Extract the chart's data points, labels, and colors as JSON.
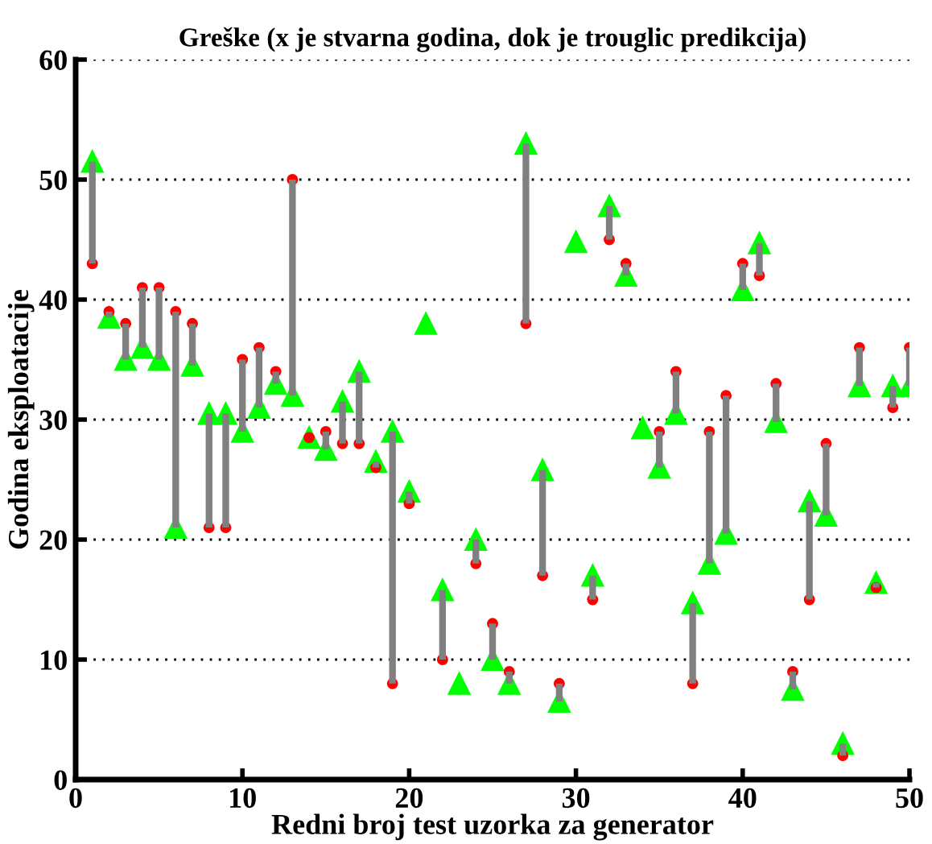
{
  "chart_data": {
    "type": "scatter",
    "title": "Greške (x je stvarna godina, dok je trouglic predikcija)",
    "xlabel": "Redni broj test uzorka za generator",
    "ylabel": "Godina eksploatacije",
    "x": [
      1,
      2,
      3,
      4,
      5,
      6,
      7,
      8,
      9,
      10,
      11,
      12,
      13,
      14,
      15,
      16,
      17,
      18,
      19,
      20,
      21,
      22,
      23,
      24,
      25,
      26,
      27,
      28,
      29,
      30,
      31,
      32,
      33,
      34,
      35,
      36,
      37,
      38,
      39,
      40,
      41,
      42,
      43,
      44,
      45,
      46,
      47,
      48,
      49,
      50
    ],
    "series": [
      {
        "color": "#ff0000",
        "marker": "circle",
        "values": [
          43,
          39,
          38,
          41,
          41,
          39,
          38,
          21,
          21,
          35,
          36,
          34,
          50,
          28.5,
          29,
          28,
          28,
          26,
          8,
          23,
          null,
          10,
          null,
          18,
          13,
          9,
          38,
          17,
          8,
          null,
          15,
          45,
          43,
          null,
          29,
          34,
          8,
          29,
          32,
          43,
          42,
          33,
          9,
          15,
          28,
          2,
          36,
          16,
          31,
          36
        ]
      },
      {
        "color": "#00ff00",
        "marker": "triangle",
        "values": [
          51.5,
          38.5,
          35,
          36,
          35,
          21,
          34.5,
          30.5,
          30.5,
          29,
          31,
          33,
          32,
          28.5,
          27.5,
          31.5,
          34,
          26.5,
          29,
          24,
          38,
          15.8,
          8,
          20,
          10,
          8,
          53,
          25.8,
          6.5,
          44.8,
          17,
          47.8,
          42,
          29.3,
          26,
          30.5,
          14.7,
          18,
          20.5,
          40.8,
          44.7,
          29.8,
          7.5,
          23.2,
          22,
          3,
          32.8,
          16.4,
          32.8,
          32.8
        ],
        "errors": [
          [
            43,
            51.5
          ],
          [
            38.5,
            39
          ],
          [
            35,
            38
          ],
          [
            36,
            41
          ],
          [
            35,
            41
          ],
          [
            21,
            39
          ],
          [
            34.5,
            38
          ],
          [
            21,
            30.5
          ],
          [
            21,
            30.5
          ],
          [
            29,
            35
          ],
          [
            31,
            36
          ],
          [
            33,
            34
          ],
          [
            32,
            50
          ],
          null,
          [
            27.5,
            29
          ],
          [
            28,
            31.5
          ],
          [
            28,
            34
          ],
          [
            26,
            26.5
          ],
          [
            8,
            29
          ],
          [
            23,
            24
          ],
          null,
          [
            10,
            15.8
          ],
          null,
          [
            18,
            20
          ],
          [
            10,
            13
          ],
          [
            8,
            9
          ],
          [
            38,
            53
          ],
          [
            17,
            25.8
          ],
          [
            6.5,
            8
          ],
          null,
          [
            15,
            17
          ],
          [
            45,
            47.8
          ],
          [
            42,
            43
          ],
          null,
          [
            26,
            29
          ],
          [
            30.5,
            34
          ],
          [
            8,
            14.7
          ],
          [
            18,
            29
          ],
          [
            20.5,
            32
          ],
          [
            40.8,
            43
          ],
          [
            42,
            44.7
          ],
          [
            29.8,
            33
          ],
          [
            7.5,
            9
          ],
          [
            15,
            23.2
          ],
          [
            22,
            28
          ],
          [
            2,
            3
          ],
          [
            32.8,
            36
          ],
          [
            16,
            16.4
          ],
          [
            31,
            32.8
          ],
          [
            32.8,
            36
          ]
        ]
      }
    ],
    "xlim": [
      0,
      50
    ],
    "ylim": [
      0,
      60
    ],
    "xticks": [
      0,
      10,
      20,
      30,
      40,
      50
    ],
    "yticks": [
      0,
      10,
      20,
      30,
      40,
      50,
      60
    ],
    "grid": "y"
  }
}
